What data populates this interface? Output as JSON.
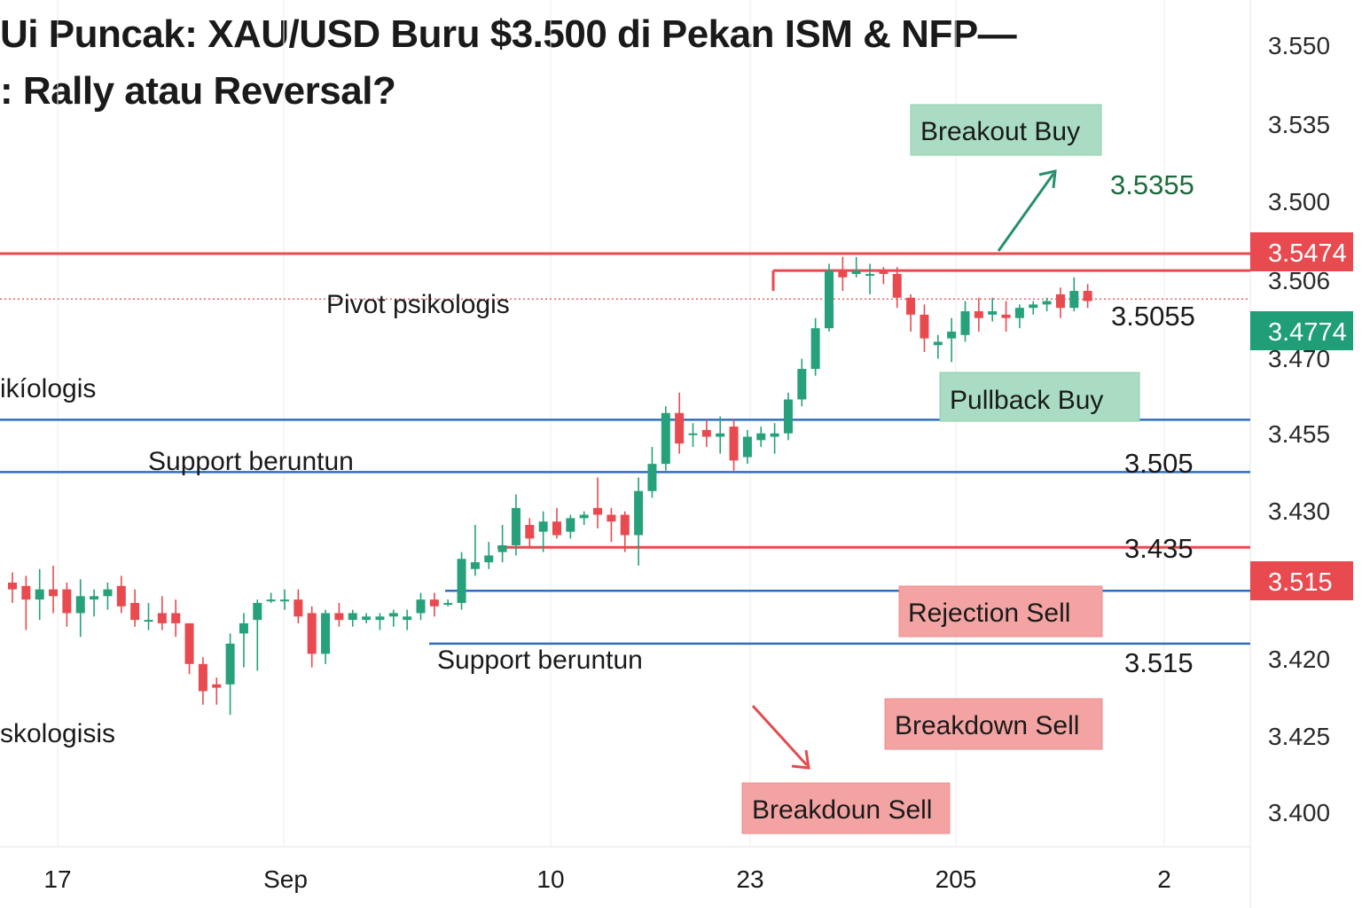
{
  "title": {
    "line1": "Ui Puncak: XAU/USD Buru $3.500 di Pekan ISM & NFP—",
    "line2": ": Rally atau Reversal?"
  },
  "colors": {
    "up": "#26a17b",
    "down": "#e84a4f",
    "support": "#2f6fbd",
    "buy_box": "#a9dcc3",
    "sell_box": "#f4a3a3",
    "tag_red": "#e84a4f",
    "tag_green": "#1f9e78",
    "target_text": "#1c6b3c"
  },
  "chart_data": {
    "type": "candlestick",
    "price_axis_labels": [
      "3.550",
      "3.535",
      "3.500",
      "3.506",
      "3.470",
      "3.455",
      "3.430",
      "3.420",
      "3.425",
      "3.400"
    ],
    "x_ticks": [
      "17",
      "Sep",
      "10",
      "23",
      "205",
      "2"
    ],
    "candles": [
      {
        "o": 3.431,
        "h": 3.4325,
        "l": 3.428,
        "c": 3.43
      },
      {
        "o": 3.4305,
        "h": 3.432,
        "l": 3.424,
        "c": 3.4285
      },
      {
        "o": 3.4285,
        "h": 3.433,
        "l": 3.4255,
        "c": 3.43
      },
      {
        "o": 3.43,
        "h": 3.4335,
        "l": 3.4265,
        "c": 3.429
      },
      {
        "o": 3.43,
        "h": 3.431,
        "l": 3.4245,
        "c": 3.4265
      },
      {
        "o": 3.4265,
        "h": 3.4315,
        "l": 3.423,
        "c": 3.429
      },
      {
        "o": 3.4285,
        "h": 3.43,
        "l": 3.426,
        "c": 3.429
      },
      {
        "o": 3.429,
        "h": 3.431,
        "l": 3.427,
        "c": 3.43
      },
      {
        "o": 3.4305,
        "h": 3.432,
        "l": 3.4265,
        "c": 3.4275
      },
      {
        "o": 3.428,
        "h": 3.43,
        "l": 3.4245,
        "c": 3.4255
      },
      {
        "o": 3.4255,
        "h": 3.428,
        "l": 3.424,
        "c": 3.4255
      },
      {
        "o": 3.4265,
        "h": 3.429,
        "l": 3.424,
        "c": 3.425
      },
      {
        "o": 3.4265,
        "h": 3.4285,
        "l": 3.423,
        "c": 3.425
      },
      {
        "o": 3.425,
        "h": 3.425,
        "l": 3.4175,
        "c": 3.419
      },
      {
        "o": 3.419,
        "h": 3.42,
        "l": 3.413,
        "c": 3.415
      },
      {
        "o": 3.416,
        "h": 3.417,
        "l": 3.413,
        "c": 3.4155
      },
      {
        "o": 3.416,
        "h": 3.4235,
        "l": 3.4115,
        "c": 3.422
      },
      {
        "o": 3.4235,
        "h": 3.4265,
        "l": 3.4185,
        "c": 3.425
      },
      {
        "o": 3.4255,
        "h": 3.4285,
        "l": 3.418,
        "c": 3.428
      },
      {
        "o": 3.4285,
        "h": 3.4295,
        "l": 3.428,
        "c": 3.4285
      },
      {
        "o": 3.4285,
        "h": 3.43,
        "l": 3.427,
        "c": 3.4285
      },
      {
        "o": 3.4285,
        "h": 3.43,
        "l": 3.425,
        "c": 3.426
      },
      {
        "o": 3.4265,
        "h": 3.4275,
        "l": 3.4185,
        "c": 3.4205
      },
      {
        "o": 3.4205,
        "h": 3.427,
        "l": 3.419,
        "c": 3.4265
      },
      {
        "o": 3.4265,
        "h": 3.428,
        "l": 3.4245,
        "c": 3.4255
      },
      {
        "o": 3.4255,
        "h": 3.427,
        "l": 3.4245,
        "c": 3.4265
      },
      {
        "o": 3.4255,
        "h": 3.4265,
        "l": 3.425,
        "c": 3.426
      },
      {
        "o": 3.4255,
        "h": 3.4265,
        "l": 3.424,
        "c": 3.426
      },
      {
        "o": 3.426,
        "h": 3.427,
        "l": 3.4245,
        "c": 3.4265
      },
      {
        "o": 3.4255,
        "h": 3.427,
        "l": 3.424,
        "c": 3.426
      },
      {
        "o": 3.4265,
        "h": 3.4295,
        "l": 3.4255,
        "c": 3.4285
      },
      {
        "o": 3.4285,
        "h": 3.4295,
        "l": 3.426,
        "c": 3.4275
      },
      {
        "o": 3.428,
        "h": 3.4285,
        "l": 3.4275,
        "c": 3.428
      },
      {
        "o": 3.428,
        "h": 3.4355,
        "l": 3.427,
        "c": 3.4345
      },
      {
        "o": 3.433,
        "h": 3.4395,
        "l": 3.432,
        "c": 3.434
      },
      {
        "o": 3.434,
        "h": 3.437,
        "l": 3.433,
        "c": 3.435
      },
      {
        "o": 3.4355,
        "h": 3.4395,
        "l": 3.434,
        "c": 3.4365
      },
      {
        "o": 3.4365,
        "h": 3.444,
        "l": 3.435,
        "c": 3.442
      },
      {
        "o": 3.4395,
        "h": 3.4405,
        "l": 3.436,
        "c": 3.4375
      },
      {
        "o": 3.4385,
        "h": 3.4415,
        "l": 3.4355,
        "c": 3.44
      },
      {
        "o": 3.44,
        "h": 3.442,
        "l": 3.4375,
        "c": 3.438
      },
      {
        "o": 3.4385,
        "h": 3.441,
        "l": 3.4375,
        "c": 3.4405
      },
      {
        "o": 3.4405,
        "h": 3.4415,
        "l": 3.4395,
        "c": 3.441
      },
      {
        "o": 3.442,
        "h": 3.4465,
        "l": 3.439,
        "c": 3.441
      },
      {
        "o": 3.441,
        "h": 3.442,
        "l": 3.437,
        "c": 3.44
      },
      {
        "o": 3.441,
        "h": 3.4415,
        "l": 3.4355,
        "c": 3.438
      },
      {
        "o": 3.438,
        "h": 3.4465,
        "l": 3.4335,
        "c": 3.4445
      },
      {
        "o": 3.4445,
        "h": 3.451,
        "l": 3.4435,
        "c": 3.4485
      },
      {
        "o": 3.4485,
        "h": 3.457,
        "l": 3.4475,
        "c": 3.456
      },
      {
        "o": 3.456,
        "h": 3.459,
        "l": 3.45,
        "c": 3.4515
      },
      {
        "o": 3.453,
        "h": 3.4545,
        "l": 3.451,
        "c": 3.453
      },
      {
        "o": 3.4535,
        "h": 3.455,
        "l": 3.451,
        "c": 3.4525
      },
      {
        "o": 3.4525,
        "h": 3.4555,
        "l": 3.45,
        "c": 3.453
      },
      {
        "o": 3.454,
        "h": 3.455,
        "l": 3.4475,
        "c": 3.449
      },
      {
        "o": 3.4495,
        "h": 3.4535,
        "l": 3.4485,
        "c": 3.4525
      },
      {
        "o": 3.452,
        "h": 3.454,
        "l": 3.451,
        "c": 3.453
      },
      {
        "o": 3.4525,
        "h": 3.4545,
        "l": 3.45,
        "c": 3.453
      },
      {
        "o": 3.453,
        "h": 3.459,
        "l": 3.452,
        "c": 3.458
      },
      {
        "o": 3.458,
        "h": 3.464,
        "l": 3.457,
        "c": 3.4625
      },
      {
        "o": 3.4625,
        "h": 3.47,
        "l": 3.4615,
        "c": 3.4685
      },
      {
        "o": 3.4685,
        "h": 3.478,
        "l": 3.468,
        "c": 3.477
      },
      {
        "o": 3.477,
        "h": 3.479,
        "l": 3.474,
        "c": 3.476
      },
      {
        "o": 3.4765,
        "h": 3.479,
        "l": 3.476,
        "c": 3.477
      },
      {
        "o": 3.4765,
        "h": 3.478,
        "l": 3.4735,
        "c": 3.4765
      },
      {
        "o": 3.477,
        "h": 3.4775,
        "l": 3.475,
        "c": 3.4765
      },
      {
        "o": 3.4765,
        "h": 3.4775,
        "l": 3.4715,
        "c": 3.473
      },
      {
        "o": 3.473,
        "h": 3.4735,
        "l": 3.468,
        "c": 3.4705
      },
      {
        "o": 3.4705,
        "h": 3.472,
        "l": 3.465,
        "c": 3.467
      },
      {
        "o": 3.466,
        "h": 3.4675,
        "l": 3.464,
        "c": 3.4665
      },
      {
        "o": 3.467,
        "h": 3.47,
        "l": 3.4635,
        "c": 3.468
      },
      {
        "o": 3.4675,
        "h": 3.4725,
        "l": 3.4665,
        "c": 3.471
      },
      {
        "o": 3.471,
        "h": 3.473,
        "l": 3.468,
        "c": 3.47
      },
      {
        "o": 3.4705,
        "h": 3.473,
        "l": 3.4695,
        "c": 3.471
      },
      {
        "o": 3.4705,
        "h": 3.4725,
        "l": 3.468,
        "c": 3.47
      },
      {
        "o": 3.47,
        "h": 3.472,
        "l": 3.4685,
        "c": 3.4715
      },
      {
        "o": 3.4715,
        "h": 3.4725,
        "l": 3.4705,
        "c": 3.472
      },
      {
        "o": 3.472,
        "h": 3.473,
        "l": 3.471,
        "c": 3.4725
      },
      {
        "o": 3.4735,
        "h": 3.4745,
        "l": 3.47,
        "c": 3.4715
      },
      {
        "o": 3.4715,
        "h": 3.476,
        "l": 3.471,
        "c": 3.474
      },
      {
        "o": 3.474,
        "h": 3.475,
        "l": 3.4715,
        "c": 3.4725
      }
    ],
    "levels": [
      {
        "name": "resistance-upper",
        "price": 3.4795,
        "color": "down",
        "style": "solid"
      },
      {
        "name": "resistance-lower",
        "price": 3.477,
        "color": "down",
        "style": "solid"
      },
      {
        "name": "pivot",
        "price": 3.4728,
        "color": "down",
        "style": "dotted"
      },
      {
        "name": "support-1",
        "price": 3.455,
        "color": "support",
        "style": "solid"
      },
      {
        "name": "support-2",
        "price": 3.4473,
        "color": "support",
        "style": "solid"
      },
      {
        "name": "rejection-line",
        "price": 3.4362,
        "color": "down",
        "style": "solid"
      },
      {
        "name": "support-3",
        "price": 3.4298,
        "color": "support",
        "style": "solid"
      },
      {
        "name": "support-4",
        "price": 3.422,
        "color": "support",
        "style": "solid"
      }
    ],
    "price_tags": [
      {
        "text": "3.5474",
        "price": 3.4775,
        "color": "tag_red"
      },
      {
        "text": "3.4774",
        "price": 3.4728,
        "color": "tag_green"
      },
      {
        "text": "3.515",
        "price": 3.4362,
        "color": "tag_red"
      }
    ],
    "level_values": [
      "3.5355",
      "3.5055",
      "3.505",
      "3.435",
      "3.515"
    ],
    "annotations": {
      "pivot": "Pivot psikologis",
      "left_pivot": "ikíologis",
      "support_1": "Support beruntun",
      "support_2": "Support beruntun",
      "left_bottom": "skologisis",
      "breakout_buy": "Breakout Buy",
      "pullback_buy": "Pullback Buy",
      "rejection_sell": "Rejection Sell",
      "breakdown_sell": "Breakdown Sell",
      "breakdoun_sell": "Breakdoun Sell"
    }
  }
}
